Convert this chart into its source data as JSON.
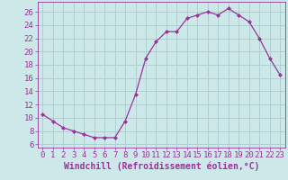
{
  "x": [
    0,
    1,
    2,
    3,
    4,
    5,
    6,
    7,
    8,
    9,
    10,
    11,
    12,
    13,
    14,
    15,
    16,
    17,
    18,
    19,
    20,
    21,
    22,
    23
  ],
  "y": [
    10.5,
    9.5,
    8.5,
    8.0,
    7.5,
    7.0,
    7.0,
    7.0,
    9.5,
    13.5,
    19.0,
    21.5,
    23.0,
    23.0,
    25.0,
    25.5,
    26.0,
    25.5,
    26.5,
    25.5,
    24.5,
    22.0,
    19.0,
    16.5
  ],
  "line_color": "#993399",
  "marker": "D",
  "marker_size": 2.0,
  "bg_color": "#cce8e8",
  "grid_color": "#aacccc",
  "xlabel": "Windchill (Refroidissement éolien,°C)",
  "xlim": [
    -0.5,
    23.5
  ],
  "ylim": [
    5.5,
    27.5
  ],
  "yticks": [
    6,
    8,
    10,
    12,
    14,
    16,
    18,
    20,
    22,
    24,
    26
  ],
  "xticks": [
    0,
    1,
    2,
    3,
    4,
    5,
    6,
    7,
    8,
    9,
    10,
    11,
    12,
    13,
    14,
    15,
    16,
    17,
    18,
    19,
    20,
    21,
    22,
    23
  ],
  "font_color": "#993399",
  "tick_fontsize": 6.5,
  "label_fontsize": 7.0
}
